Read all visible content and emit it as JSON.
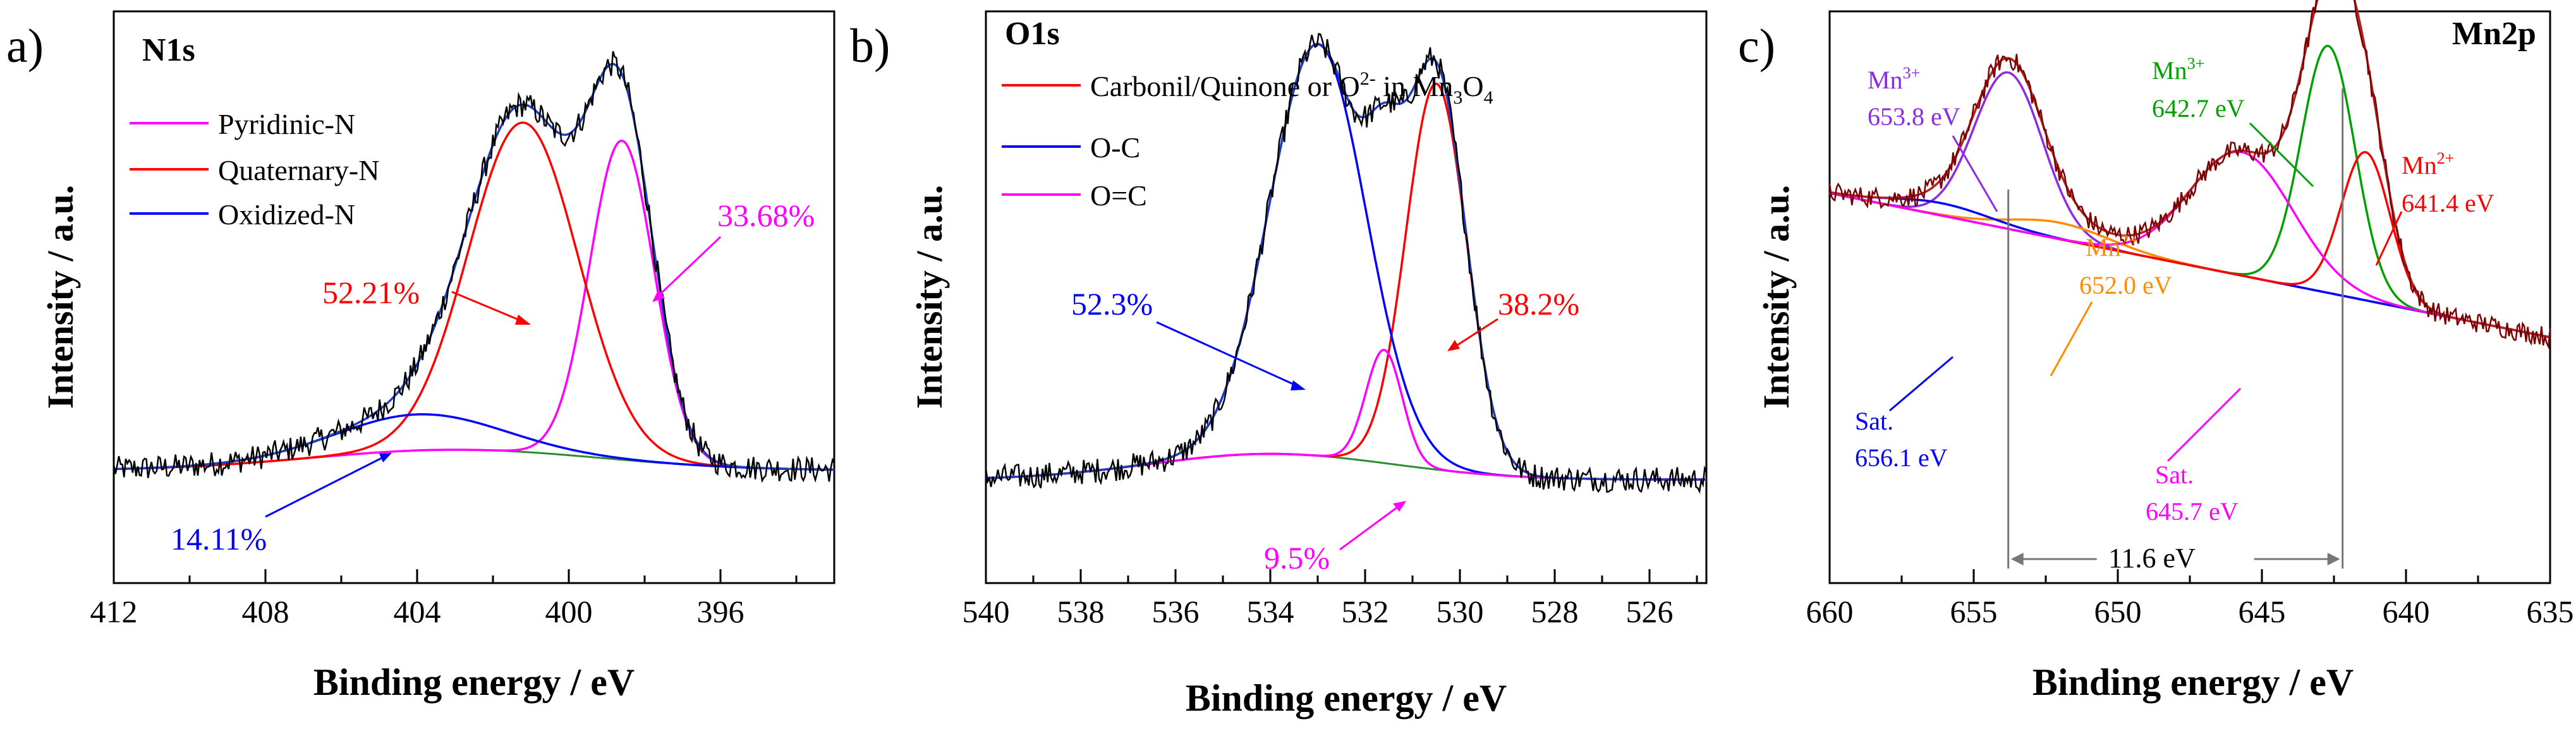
{
  "chart_data": [
    {
      "type": "line",
      "panel_label": "a)",
      "title": "N1s",
      "xlabel": "Binding energy / eV",
      "ylabel": "Intensity / a.u.",
      "xlim": [
        412,
        393
      ],
      "ylim": [
        0,
        1
      ],
      "xticks": [
        412,
        408,
        404,
        400,
        396
      ],
      "grid": false,
      "legend": [
        "Pyridinic-N",
        "Quaternary-N",
        "Oxidized-N"
      ],
      "background": {
        "a": 0.24,
        "b": -0.0006,
        "center": 403,
        "width": 4.5,
        "peak": 0.04
      },
      "components": [
        {
          "name": "Pyridinic-N",
          "color": "#ff00ff",
          "center": 398.6,
          "fwhm": 2.0,
          "height": 0.62
        },
        {
          "name": "Quaternary-N",
          "color": "#ff0000",
          "center": 401.2,
          "fwhm": 3.4,
          "height": 0.64
        },
        {
          "name": "Oxidized-N",
          "color": "#0000ff",
          "center": 404.0,
          "fwhm": 5.0,
          "height": 0.07
        }
      ],
      "annotations": [
        {
          "text": "52.21%",
          "color": "#ff0000"
        },
        {
          "text": "33.68%",
          "color": "#ff00ff"
        },
        {
          "text": "14.11%",
          "color": "#0000ff"
        }
      ]
    },
    {
      "type": "line",
      "panel_label": "b)",
      "title": "O1s",
      "xlabel": "Binding energy / eV",
      "ylabel": "Intensity / a.u.",
      "xlim": [
        540,
        524.8
      ],
      "ylim": [
        0,
        1
      ],
      "xticks": [
        540,
        538,
        536,
        534,
        532,
        530,
        528,
        526
      ],
      "grid": false,
      "legend": [
        "Carbonil/Quinone or O^2- in Mn_3O_4",
        "O-C",
        "O=C"
      ],
      "background": {
        "a": 0.2,
        "b": 0.0,
        "center": 534,
        "width": 3.0,
        "peak": 0.05
      },
      "components": [
        {
          "name": "Carbonil/Quinone or O2- in Mn3O4",
          "color": "#ff0000",
          "center": 530.5,
          "fwhm": 1.5,
          "height": 0.75
        },
        {
          "name": "O-C",
          "color": "#0000ff",
          "center": 533.0,
          "fwhm": 2.4,
          "height": 0.8
        },
        {
          "name": "O=C",
          "color": "#ff00ff",
          "center": 531.6,
          "fwhm": 0.9,
          "height": 0.22
        }
      ],
      "annotations": [
        {
          "text": "52.3%",
          "color": "#0000ff"
        },
        {
          "text": "38.2%",
          "color": "#ff0000"
        },
        {
          "text": "9.5%",
          "color": "#ff00ff"
        }
      ]
    },
    {
      "type": "line",
      "panel_label": "c)",
      "title": "Mn2p",
      "xlabel": "Binding energy / eV",
      "ylabel": "Intensity / a.u.",
      "xlim": [
        660,
        635
      ],
      "ylim": [
        0,
        1
      ],
      "xticks": [
        660,
        655,
        650,
        645,
        640,
        635
      ],
      "grid": false,
      "background": {
        "a": 0.6,
        "b": 0.0,
        "center": 648,
        "width": 5.0,
        "peak": 0.0
      },
      "components": [
        {
          "name": "Mn3+ 653.8 eV",
          "color": "#8a2be2",
          "center": 653.8,
          "fwhm": 2.8,
          "height": 0.38
        },
        {
          "name": "Mn2+ 652.0 eV",
          "color": "#ff8c00",
          "center": 652.0,
          "fwhm": 4.0,
          "height": 0.04
        },
        {
          "name": "Sat. 656.1 eV",
          "color": "#0000ff",
          "center": 656.1,
          "fwhm": 4.0,
          "height": 0.03
        },
        {
          "name": "Mn3+ 642.7 eV",
          "color": "#00a000",
          "center": 642.7,
          "fwhm": 2.2,
          "height": 0.6
        },
        {
          "name": "Mn2+ 641.4 eV",
          "color": "#ff0000",
          "center": 641.4,
          "fwhm": 2.0,
          "height": 0.36
        },
        {
          "name": "Sat. 645.7 eV",
          "color": "#ff00ff",
          "center": 645.7,
          "fwhm": 4.2,
          "height": 0.3
        }
      ],
      "labels": [
        {
          "species": "Mn",
          "sup": "3+",
          "value": "653.8 eV",
          "color": "#8a2be2"
        },
        {
          "species": "Mn",
          "sup": "3+",
          "value": "642.7 eV",
          "color": "#00a000"
        },
        {
          "species": "Mn",
          "sup": "2+",
          "value": "641.4 eV",
          "color": "#ff0000"
        },
        {
          "species": "Mn",
          "sup": "2+",
          "value": "652.0 eV",
          "color": "#ff8c00"
        },
        {
          "species": "Sat.",
          "sup": "",
          "value": "656.1 eV",
          "color": "#0000ff"
        },
        {
          "species": "Sat.",
          "sup": "",
          "value": "645.7 eV",
          "color": "#ff00ff"
        }
      ],
      "splitting": {
        "text": "11.6 eV",
        "from": 653.8,
        "to": 642.2
      }
    }
  ],
  "legend_b_parts": {
    "line1_main": "Carbonil/Quinone or O",
    "line1_sup": "2-",
    "line1_mid": " in Mn",
    "line1_sub1": "3",
    "line1_o": "O",
    "line1_sub2": "4"
  }
}
